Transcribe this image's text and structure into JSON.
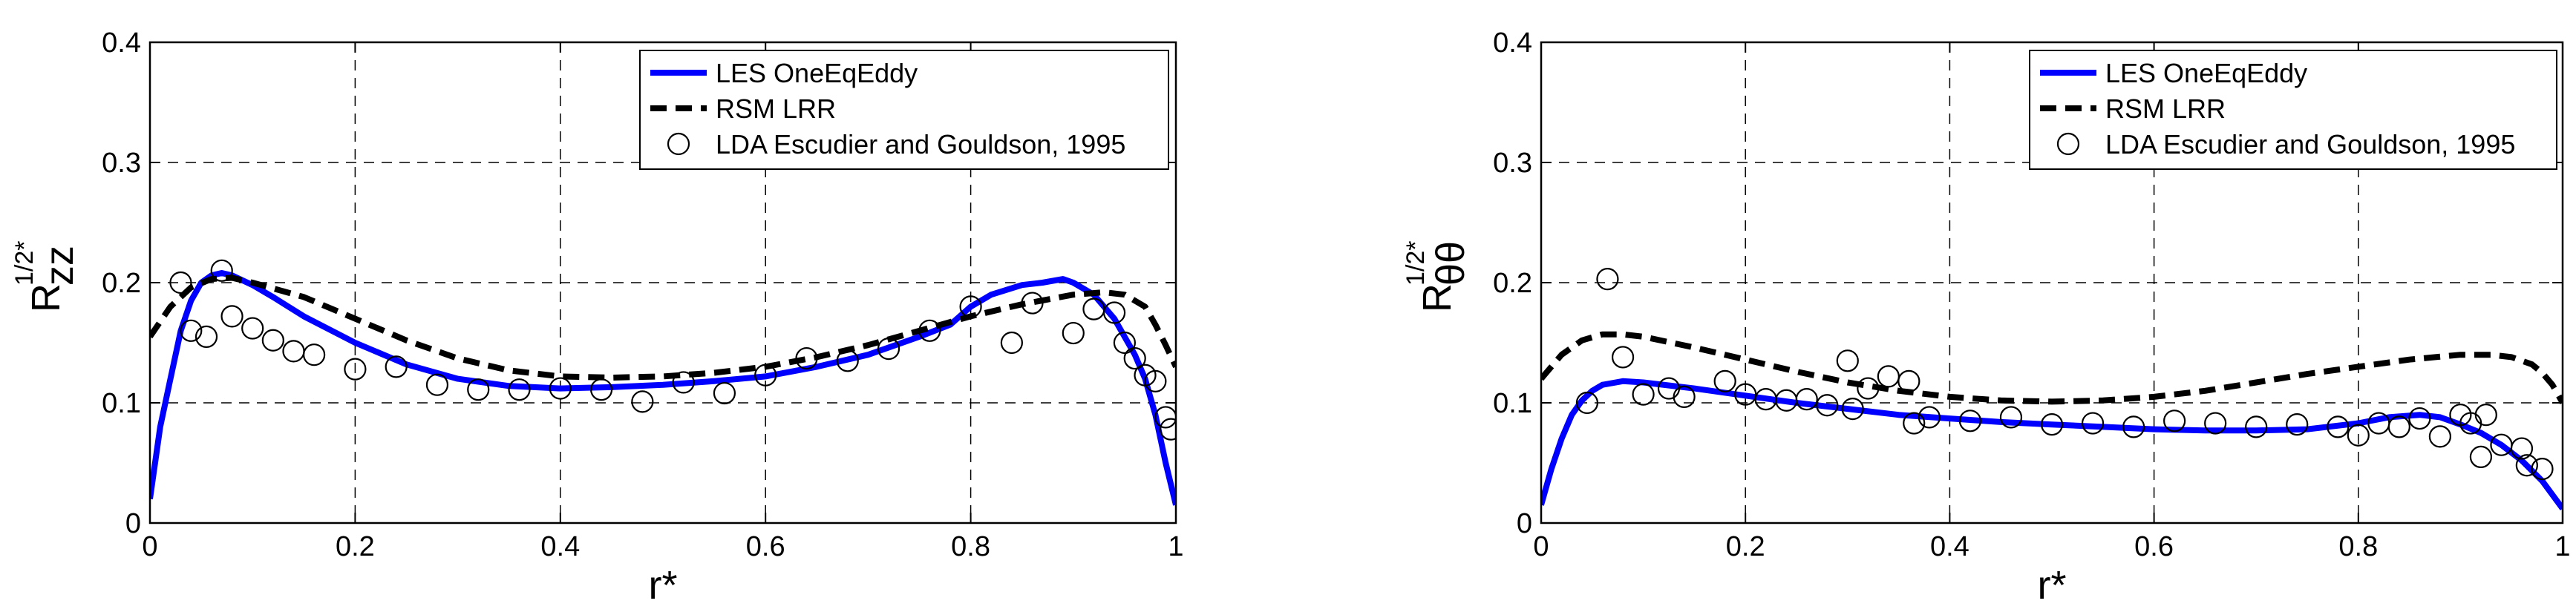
{
  "chart_data": [
    {
      "type": "line",
      "ylabel": {
        "base": "R",
        "superscript": "1/2*",
        "subscript": "zz"
      },
      "xlabel": "r*",
      "xlim": [
        0,
        1
      ],
      "ylim": [
        0,
        0.4
      ],
      "xticks": [
        0,
        0.2,
        0.4,
        0.6,
        0.8,
        1
      ],
      "xtick_labels": [
        "0",
        "0.2",
        "0.4",
        "0.6",
        "0.8",
        "1"
      ],
      "yticks": [
        0,
        0.1,
        0.2,
        0.3,
        0.4
      ],
      "ytick_labels": [
        "0",
        "0.1",
        "0.2",
        "0.3",
        "0.4"
      ],
      "grid": true,
      "legend_position": "top-right",
      "series": [
        {
          "name": "LES OneEqEddy",
          "style": "solid",
          "color": "#0000ff",
          "x": [
            0,
            0.01,
            0.02,
            0.03,
            0.04,
            0.05,
            0.06,
            0.07,
            0.08,
            0.1,
            0.12,
            0.15,
            0.2,
            0.25,
            0.3,
            0.35,
            0.4,
            0.45,
            0.5,
            0.55,
            0.6,
            0.65,
            0.7,
            0.75,
            0.78,
            0.8,
            0.82,
            0.85,
            0.87,
            0.89,
            0.9,
            0.92,
            0.94,
            0.96,
            0.97,
            0.98,
            0.99,
            1.0
          ],
          "y": [
            0.02,
            0.08,
            0.12,
            0.16,
            0.185,
            0.2,
            0.206,
            0.208,
            0.206,
            0.198,
            0.188,
            0.172,
            0.15,
            0.132,
            0.12,
            0.114,
            0.112,
            0.113,
            0.115,
            0.118,
            0.122,
            0.13,
            0.14,
            0.155,
            0.165,
            0.18,
            0.19,
            0.198,
            0.2,
            0.203,
            0.2,
            0.19,
            0.17,
            0.14,
            0.12,
            0.09,
            0.05,
            0.015
          ]
        },
        {
          "name": "RSM LRR",
          "style": "dashed",
          "color": "#000000",
          "x": [
            0,
            0.02,
            0.04,
            0.06,
            0.08,
            0.1,
            0.15,
            0.2,
            0.25,
            0.3,
            0.35,
            0.4,
            0.45,
            0.5,
            0.55,
            0.6,
            0.65,
            0.7,
            0.75,
            0.8,
            0.85,
            0.9,
            0.93,
            0.95,
            0.97,
            0.98,
            0.99,
            1.0
          ],
          "y": [
            0.155,
            0.18,
            0.196,
            0.203,
            0.204,
            0.2,
            0.188,
            0.17,
            0.152,
            0.137,
            0.127,
            0.122,
            0.121,
            0.122,
            0.125,
            0.13,
            0.138,
            0.148,
            0.16,
            0.172,
            0.182,
            0.19,
            0.192,
            0.19,
            0.18,
            0.165,
            0.148,
            0.13
          ]
        },
        {
          "name": "LDA Escudier and Gouldson, 1995",
          "style": "markers-circle",
          "color": "#000000",
          "x": [
            0.03,
            0.04,
            0.055,
            0.07,
            0.08,
            0.1,
            0.12,
            0.14,
            0.16,
            0.2,
            0.24,
            0.28,
            0.32,
            0.36,
            0.4,
            0.44,
            0.48,
            0.52,
            0.56,
            0.6,
            0.64,
            0.68,
            0.72,
            0.76,
            0.8,
            0.84,
            0.86,
            0.9,
            0.92,
            0.94,
            0.95,
            0.96,
            0.97,
            0.98,
            0.99,
            0.995
          ],
          "y": [
            0.2,
            0.16,
            0.155,
            0.21,
            0.172,
            0.162,
            0.152,
            0.143,
            0.14,
            0.128,
            0.13,
            0.115,
            0.111,
            0.111,
            0.112,
            0.111,
            0.101,
            0.117,
            0.108,
            0.123,
            0.137,
            0.135,
            0.145,
            0.16,
            0.18,
            0.15,
            0.183,
            0.158,
            0.178,
            0.175,
            0.15,
            0.137,
            0.123,
            0.118,
            0.088,
            0.078
          ]
        }
      ]
    },
    {
      "type": "line",
      "ylabel": {
        "base": "R",
        "superscript": "1/2*",
        "subscript": "θθ"
      },
      "xlabel": "r*",
      "xlim": [
        0,
        1
      ],
      "ylim": [
        0,
        0.4
      ],
      "xticks": [
        0,
        0.2,
        0.4,
        0.6,
        0.8,
        1
      ],
      "xtick_labels": [
        "0",
        "0.2",
        "0.4",
        "0.6",
        "0.8",
        "1"
      ],
      "yticks": [
        0,
        0.1,
        0.2,
        0.3,
        0.4
      ],
      "ytick_labels": [
        "0",
        "0.1",
        "0.2",
        "0.3",
        "0.4"
      ],
      "grid": true,
      "legend_position": "top-right",
      "series": [
        {
          "name": "LES OneEqEddy",
          "style": "solid",
          "color": "#0000ff",
          "x": [
            0,
            0.01,
            0.02,
            0.03,
            0.04,
            0.05,
            0.06,
            0.08,
            0.1,
            0.15,
            0.2,
            0.25,
            0.3,
            0.35,
            0.4,
            0.45,
            0.5,
            0.55,
            0.6,
            0.65,
            0.7,
            0.75,
            0.8,
            0.83,
            0.86,
            0.88,
            0.9,
            0.92,
            0.94,
            0.96,
            0.98,
            1.0
          ],
          "y": [
            0.015,
            0.045,
            0.07,
            0.09,
            0.102,
            0.11,
            0.115,
            0.118,
            0.117,
            0.112,
            0.106,
            0.1,
            0.095,
            0.09,
            0.087,
            0.084,
            0.082,
            0.08,
            0.078,
            0.077,
            0.077,
            0.078,
            0.083,
            0.088,
            0.09,
            0.088,
            0.082,
            0.075,
            0.065,
            0.052,
            0.035,
            0.012
          ]
        },
        {
          "name": "RSM LRR",
          "style": "dashed",
          "color": "#000000",
          "x": [
            0,
            0.02,
            0.04,
            0.06,
            0.08,
            0.1,
            0.15,
            0.2,
            0.25,
            0.3,
            0.35,
            0.4,
            0.45,
            0.5,
            0.55,
            0.6,
            0.65,
            0.7,
            0.75,
            0.8,
            0.85,
            0.9,
            0.93,
            0.95,
            0.97,
            0.98,
            0.99,
            1.0
          ],
          "y": [
            0.12,
            0.14,
            0.152,
            0.157,
            0.157,
            0.155,
            0.146,
            0.136,
            0.126,
            0.117,
            0.11,
            0.105,
            0.102,
            0.101,
            0.102,
            0.105,
            0.11,
            0.117,
            0.124,
            0.13,
            0.136,
            0.14,
            0.14,
            0.138,
            0.132,
            0.125,
            0.115,
            0.1
          ]
        },
        {
          "name": "LDA Escudier and Gouldson, 1995",
          "style": "markers-circle",
          "color": "#000000",
          "x": [
            0.045,
            0.065,
            0.08,
            0.1,
            0.125,
            0.14,
            0.18,
            0.2,
            0.22,
            0.24,
            0.26,
            0.28,
            0.3,
            0.305,
            0.32,
            0.34,
            0.36,
            0.365,
            0.38,
            0.42,
            0.46,
            0.5,
            0.54,
            0.58,
            0.62,
            0.66,
            0.7,
            0.74,
            0.78,
            0.8,
            0.82,
            0.84,
            0.86,
            0.88,
            0.9,
            0.91,
            0.92,
            0.925,
            0.94,
            0.96,
            0.965,
            0.98
          ],
          "y": [
            0.1,
            0.203,
            0.138,
            0.107,
            0.112,
            0.105,
            0.118,
            0.107,
            0.103,
            0.102,
            0.103,
            0.098,
            0.135,
            0.095,
            0.112,
            0.122,
            0.118,
            0.083,
            0.088,
            0.085,
            0.088,
            0.082,
            0.083,
            0.08,
            0.085,
            0.083,
            0.08,
            0.082,
            0.08,
            0.073,
            0.083,
            0.08,
            0.087,
            0.072,
            0.09,
            0.083,
            0.055,
            0.09,
            0.065,
            0.062,
            0.048,
            0.045
          ]
        }
      ]
    }
  ]
}
